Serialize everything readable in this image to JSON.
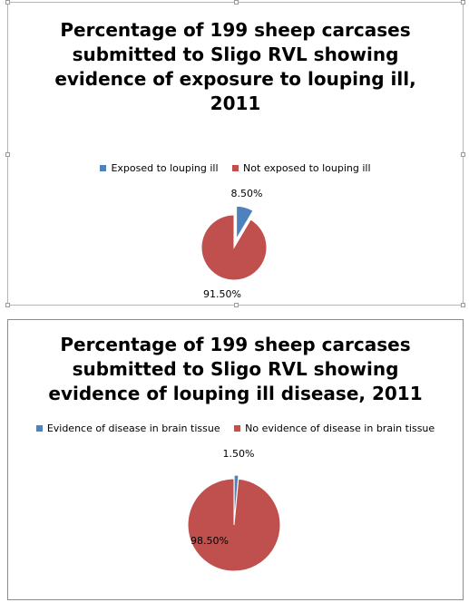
{
  "chart_data": [
    {
      "type": "pie",
      "title": "Percentage of 199 sheep carcases\nsubmitted to Sligo RVL showing\nevidence of exposure to louping ill,\n2011",
      "categories": [
        "Exposed to louping ill",
        "Not exposed to louping ill"
      ],
      "values": [
        8.5,
        91.5
      ],
      "data_labels": [
        "8.50%",
        "91.50%"
      ],
      "colors": [
        "#4f81bd",
        "#c0504d"
      ],
      "exploded_slice": 0,
      "legend_position": "top"
    },
    {
      "type": "pie",
      "title": "Percentage of 199 sheep carcases\nsubmitted to Sligo RVL showing\nevidence of louping ill disease, 2011",
      "categories": [
        "Evidence of disease in brain tissue",
        "No evidence of disease in brain tissue"
      ],
      "values": [
        1.5,
        98.5
      ],
      "data_labels": [
        "1.50%",
        "98.50%"
      ],
      "colors": [
        "#4f81bd",
        "#c0504d"
      ],
      "exploded_slice": 0,
      "legend_position": "top"
    }
  ]
}
